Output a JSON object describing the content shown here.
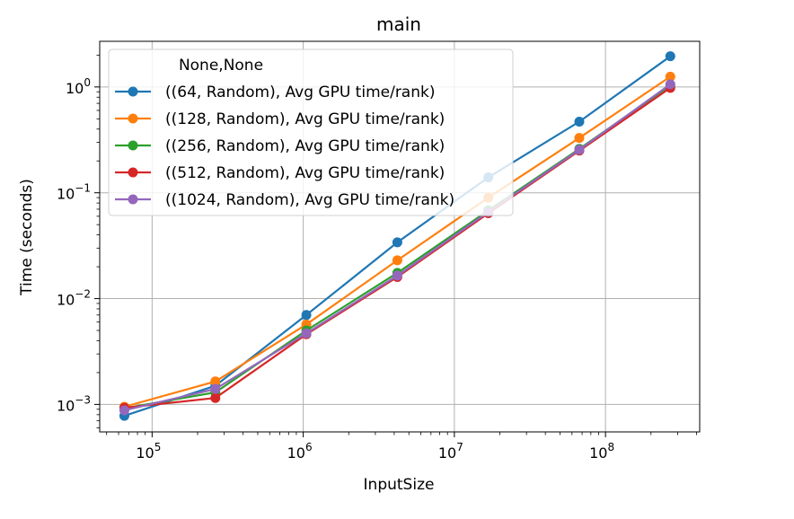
{
  "chart_data": {
    "type": "line",
    "title": "main",
    "xlabel": "InputSize",
    "ylabel": "Time (seconds)",
    "x_scale": "log",
    "y_scale": "log",
    "xlim": [
      45000,
      420000000
    ],
    "ylim": [
      0.00055,
      2.7
    ],
    "grid": true,
    "legend": {
      "title": "None,None",
      "placement": "upper left"
    },
    "x_ticks": [
      {
        "value": 100000,
        "base": "10",
        "exp": "5"
      },
      {
        "value": 1000000,
        "base": "10",
        "exp": "6"
      },
      {
        "value": 10000000,
        "base": "10",
        "exp": "7"
      },
      {
        "value": 100000000,
        "base": "10",
        "exp": "8"
      }
    ],
    "y_ticks": [
      {
        "value": 0.001,
        "base": "10",
        "exp": "−3"
      },
      {
        "value": 0.01,
        "base": "10",
        "exp": "−2"
      },
      {
        "value": 0.1,
        "base": "10",
        "exp": "−1"
      },
      {
        "value": 1,
        "base": "10",
        "exp": "0"
      }
    ],
    "x": [
      65536,
      262144,
      1048576,
      4194304,
      16777216,
      67108864,
      268435456
    ],
    "series": [
      {
        "name": "((64, Random), Avg GPU time/rank)",
        "color": "#1f77b4",
        "values": [
          0.00078,
          0.0015,
          0.007,
          0.034,
          0.14,
          0.47,
          1.95
        ]
      },
      {
        "name": "((128, Random), Avg GPU time/rank)",
        "color": "#ff7f0e",
        "values": [
          0.00095,
          0.00165,
          0.0057,
          0.023,
          0.09,
          0.33,
          1.25
        ]
      },
      {
        "name": "((256, Random), Avg GPU time/rank)",
        "color": "#2ca02c",
        "values": [
          0.00092,
          0.0013,
          0.005,
          0.0175,
          0.068,
          0.26,
          1.03
        ]
      },
      {
        "name": "((512, Random), Avg GPU time/rank)",
        "color": "#d62728",
        "values": [
          0.00093,
          0.00115,
          0.0046,
          0.016,
          0.064,
          0.25,
          0.98
        ]
      },
      {
        "name": "((1024, Random), Avg GPU time/rank)",
        "color": "#9467bd",
        "values": [
          0.00088,
          0.0014,
          0.0047,
          0.0165,
          0.066,
          0.255,
          1.06
        ]
      }
    ]
  }
}
